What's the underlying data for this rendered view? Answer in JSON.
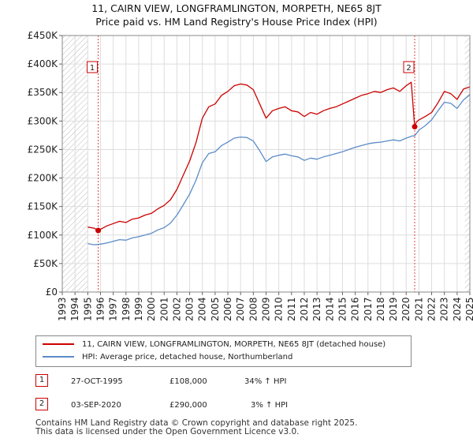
{
  "title_line1": "11, CAIRN VIEW, LONGFRAMLINGTON, MORPETH, NE65 8JT",
  "title_line2": "Price paid vs. HM Land Registry's House Price Index (HPI)",
  "chart_data": {
    "type": "line",
    "xlim": [
      1993,
      2025
    ],
    "ylim": [
      0,
      450000
    ],
    "y_ticks": [
      {
        "value": 0,
        "label": "£0"
      },
      {
        "value": 50000,
        "label": "£50K"
      },
      {
        "value": 100000,
        "label": "£100K"
      },
      {
        "value": 150000,
        "label": "£150K"
      },
      {
        "value": 200000,
        "label": "£200K"
      },
      {
        "value": 250000,
        "label": "£250K"
      },
      {
        "value": 300000,
        "label": "£300K"
      },
      {
        "value": 350000,
        "label": "£350K"
      },
      {
        "value": 400000,
        "label": "£400K"
      },
      {
        "value": 450000,
        "label": "£450K"
      }
    ],
    "x_ticks": [
      "1993",
      "1994",
      "1995",
      "1996",
      "1997",
      "1998",
      "1999",
      "2000",
      "2001",
      "2002",
      "2003",
      "2004",
      "2005",
      "2006",
      "2007",
      "2008",
      "2009",
      "2010",
      "2011",
      "2012",
      "2013",
      "2014",
      "2015",
      "2016",
      "2017",
      "2018",
      "2019",
      "2020",
      "2021",
      "2022",
      "2023",
      "2024",
      "2025"
    ],
    "grid": true,
    "hatched_ranges": [
      [
        1993,
        1995.0
      ],
      [
        2024.6,
        2025
      ]
    ],
    "series": [
      {
        "name": "11, CAIRN VIEW, LONGFRAMLINGTON, MORPETH, NE65 8JT (detached house)",
        "color": "#cc0000",
        "x": [
          1995.0,
          1995.5,
          1995.82,
          1996.0,
          1996.5,
          1997.0,
          1997.5,
          1998.0,
          1998.5,
          1999.0,
          1999.5,
          2000.0,
          2000.5,
          2001.0,
          2001.5,
          2002.0,
          2002.5,
          2003.0,
          2003.5,
          2004.0,
          2004.5,
          2005.0,
          2005.5,
          2006.0,
          2006.5,
          2007.0,
          2007.5,
          2008.0,
          2008.5,
          2009.0,
          2009.5,
          2010.0,
          2010.5,
          2011.0,
          2011.5,
          2012.0,
          2012.5,
          2013.0,
          2013.5,
          2014.0,
          2014.5,
          2015.0,
          2015.5,
          2016.0,
          2016.5,
          2017.0,
          2017.5,
          2018.0,
          2018.5,
          2019.0,
          2019.5,
          2020.0,
          2020.4,
          2020.67,
          2020.8,
          2021.0,
          2021.5,
          2022.0,
          2022.5,
          2023.0,
          2023.5,
          2024.0,
          2024.5,
          2025.0
        ],
        "y": [
          114000,
          112000,
          108000,
          110000,
          116000,
          120000,
          124000,
          122000,
          128000,
          130000,
          135000,
          138000,
          146000,
          152000,
          162000,
          180000,
          205000,
          230000,
          262000,
          305000,
          325000,
          330000,
          345000,
          352000,
          362000,
          365000,
          363000,
          355000,
          330000,
          305000,
          318000,
          322000,
          325000,
          318000,
          316000,
          308000,
          315000,
          312000,
          318000,
          322000,
          325000,
          330000,
          335000,
          340000,
          345000,
          348000,
          352000,
          350000,
          355000,
          358000,
          352000,
          362000,
          368000,
          290000,
          298000,
          302000,
          308000,
          315000,
          332000,
          352000,
          348000,
          338000,
          356000,
          360000
        ]
      },
      {
        "name": "HPI: Average price, detached house, Northumberland",
        "color": "#5b8cc8",
        "x": [
          1995.0,
          1995.5,
          1996.0,
          1996.5,
          1997.0,
          1997.5,
          1998.0,
          1998.5,
          1999.0,
          1999.5,
          2000.0,
          2000.5,
          2001.0,
          2001.5,
          2002.0,
          2002.5,
          2003.0,
          2003.5,
          2004.0,
          2004.5,
          2005.0,
          2005.5,
          2006.0,
          2006.5,
          2007.0,
          2007.5,
          2008.0,
          2008.5,
          2009.0,
          2009.5,
          2010.0,
          2010.5,
          2011.0,
          2011.5,
          2012.0,
          2012.5,
          2013.0,
          2013.5,
          2014.0,
          2014.5,
          2015.0,
          2015.5,
          2016.0,
          2016.5,
          2017.0,
          2017.5,
          2018.0,
          2018.5,
          2019.0,
          2019.5,
          2020.0,
          2020.5,
          2020.67,
          2021.0,
          2021.5,
          2022.0,
          2022.5,
          2023.0,
          2023.5,
          2024.0,
          2024.5,
          2025.0
        ],
        "y": [
          85000,
          83000,
          84000,
          86000,
          89000,
          92000,
          91000,
          95000,
          97000,
          100000,
          103000,
          109000,
          113000,
          121000,
          135000,
          153000,
          172000,
          196000,
          227000,
          243000,
          246000,
          257000,
          263000,
          270000,
          272000,
          271000,
          265000,
          248000,
          229000,
          237000,
          240000,
          242000,
          239000,
          237000,
          231000,
          235000,
          233000,
          237000,
          240000,
          243000,
          246000,
          250000,
          254000,
          257000,
          260000,
          262000,
          263000,
          265000,
          267000,
          265000,
          270000,
          274000,
          274000,
          284000,
          292000,
          302000,
          318000,
          333000,
          331000,
          322000,
          337000,
          346000
        ]
      }
    ],
    "sales": [
      {
        "label": "1",
        "x": 1995.82,
        "y": 108000
      },
      {
        "label": "2",
        "x": 2020.67,
        "y": 290000
      }
    ]
  },
  "legend": {
    "items": [
      {
        "label": "11, CAIRN VIEW, LONGFRAMLINGTON, MORPETH, NE65 8JT (detached house)",
        "color": "#cc0000"
      },
      {
        "label": "HPI: Average price, detached house, Northumberland",
        "color": "#5b8cc8"
      }
    ]
  },
  "sales_table": [
    {
      "marker": "1",
      "date": "27-OCT-1995",
      "price": "£108,000",
      "hpi": "34% ↑ HPI"
    },
    {
      "marker": "2",
      "date": "03-SEP-2020",
      "price": "£290,000",
      "hpi": "3% ↑ HPI"
    }
  ],
  "footer_line1": "Contains HM Land Registry data © Crown copyright and database right 2025.",
  "footer_line2": "This data is licensed under the Open Government Licence v3.0."
}
